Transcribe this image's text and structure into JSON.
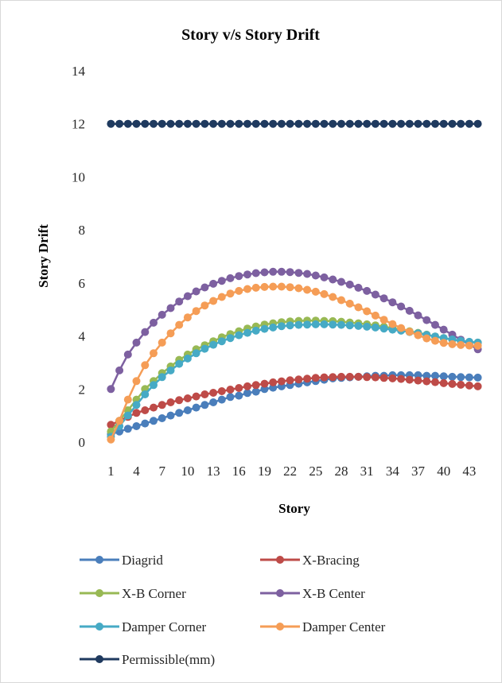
{
  "chart_data": {
    "type": "line",
    "title": "Story v/s Story Drift",
    "xlabel": "Story",
    "ylabel": "Story Drift",
    "ylim": [
      0,
      14
    ],
    "yticks": [
      0,
      2,
      4,
      6,
      8,
      10,
      12,
      14
    ],
    "x_tick_labels": [
      "1",
      "4",
      "7",
      "10",
      "13",
      "16",
      "19",
      "22",
      "25",
      "28",
      "31",
      "34",
      "37",
      "40",
      "43"
    ],
    "x": [
      1,
      2,
      3,
      4,
      5,
      6,
      7,
      8,
      9,
      10,
      11,
      12,
      13,
      14,
      15,
      16,
      17,
      18,
      19,
      20,
      21,
      22,
      23,
      24,
      25,
      26,
      27,
      28,
      29,
      30,
      31,
      32,
      33,
      34,
      35,
      36,
      37,
      38,
      39,
      40,
      41,
      42,
      43,
      44
    ],
    "grid": false,
    "legend_position": "bottom",
    "series": [
      {
        "name": "Diagrid",
        "color": "#4a7ebb",
        "values": [
          0.3,
          0.4,
          0.5,
          0.6,
          0.7,
          0.8,
          0.9,
          1.0,
          1.1,
          1.2,
          1.3,
          1.4,
          1.5,
          1.6,
          1.7,
          1.75,
          1.85,
          1.9,
          2.0,
          2.05,
          2.1,
          2.15,
          2.2,
          2.25,
          2.3,
          2.35,
          2.4,
          2.42,
          2.44,
          2.46,
          2.48,
          2.5,
          2.5,
          2.52,
          2.52,
          2.52,
          2.52,
          2.5,
          2.5,
          2.48,
          2.46,
          2.45,
          2.44,
          2.43
        ]
      },
      {
        "name": "X-Bracing",
        "color": "#be4b48",
        "values": [
          0.65,
          0.8,
          0.95,
          1.1,
          1.2,
          1.3,
          1.4,
          1.5,
          1.58,
          1.65,
          1.72,
          1.8,
          1.86,
          1.92,
          1.98,
          2.04,
          2.1,
          2.15,
          2.2,
          2.25,
          2.29,
          2.33,
          2.36,
          2.39,
          2.42,
          2.44,
          2.45,
          2.46,
          2.46,
          2.46,
          2.45,
          2.44,
          2.42,
          2.4,
          2.38,
          2.35,
          2.32,
          2.29,
          2.26,
          2.22,
          2.19,
          2.16,
          2.13,
          2.1
        ]
      },
      {
        "name": "X-B Corner",
        "color": "#98b954",
        "values": [
          0.4,
          0.8,
          1.2,
          1.6,
          2.0,
          2.3,
          2.6,
          2.85,
          3.1,
          3.3,
          3.5,
          3.65,
          3.8,
          3.95,
          4.07,
          4.18,
          4.28,
          4.36,
          4.43,
          4.48,
          4.52,
          4.55,
          4.57,
          4.58,
          4.58,
          4.57,
          4.56,
          4.54,
          4.51,
          4.48,
          4.44,
          4.4,
          4.35,
          4.3,
          4.24,
          4.18,
          4.12,
          4.05,
          3.98,
          3.92,
          3.86,
          3.81,
          3.77,
          3.75
        ]
      },
      {
        "name": "X-B Center",
        "color": "#7d60a0",
        "values": [
          2.0,
          2.7,
          3.3,
          3.75,
          4.15,
          4.5,
          4.8,
          5.05,
          5.3,
          5.5,
          5.68,
          5.83,
          5.97,
          6.08,
          6.18,
          6.26,
          6.32,
          6.37,
          6.4,
          6.42,
          6.42,
          6.41,
          6.38,
          6.34,
          6.28,
          6.21,
          6.13,
          6.04,
          5.94,
          5.82,
          5.7,
          5.56,
          5.42,
          5.27,
          5.11,
          4.95,
          4.78,
          4.6,
          4.42,
          4.24,
          4.05,
          3.86,
          3.68,
          3.5
        ]
      },
      {
        "name": "Damper Corner",
        "color": "#46aac5",
        "values": [
          0.2,
          0.6,
          1.0,
          1.4,
          1.8,
          2.15,
          2.45,
          2.7,
          2.95,
          3.15,
          3.35,
          3.52,
          3.67,
          3.8,
          3.92,
          4.03,
          4.12,
          4.2,
          4.27,
          4.32,
          4.37,
          4.4,
          4.42,
          4.43,
          4.44,
          4.44,
          4.43,
          4.42,
          4.4,
          4.38,
          4.35,
          4.32,
          4.28,
          4.24,
          4.2,
          4.15,
          4.1,
          4.04,
          3.98,
          3.92,
          3.87,
          3.82,
          3.78,
          3.75
        ]
      },
      {
        "name": "Damper Center",
        "color": "#f59d56",
        "values": [
          0.1,
          0.8,
          1.6,
          2.3,
          2.9,
          3.35,
          3.75,
          4.1,
          4.42,
          4.7,
          4.94,
          5.15,
          5.32,
          5.47,
          5.6,
          5.7,
          5.77,
          5.82,
          5.85,
          5.86,
          5.86,
          5.84,
          5.8,
          5.74,
          5.67,
          5.58,
          5.47,
          5.35,
          5.22,
          5.08,
          4.93,
          4.77,
          4.61,
          4.45,
          4.3,
          4.16,
          4.03,
          3.91,
          3.82,
          3.74,
          3.69,
          3.66,
          3.64,
          3.63
        ]
      },
      {
        "name": "Permissible(mm)",
        "color": "#1f3a5f",
        "values": [
          12,
          12,
          12,
          12,
          12,
          12,
          12,
          12,
          12,
          12,
          12,
          12,
          12,
          12,
          12,
          12,
          12,
          12,
          12,
          12,
          12,
          12,
          12,
          12,
          12,
          12,
          12,
          12,
          12,
          12,
          12,
          12,
          12,
          12,
          12,
          12,
          12,
          12,
          12,
          12,
          12,
          12,
          12,
          12
        ]
      }
    ]
  }
}
